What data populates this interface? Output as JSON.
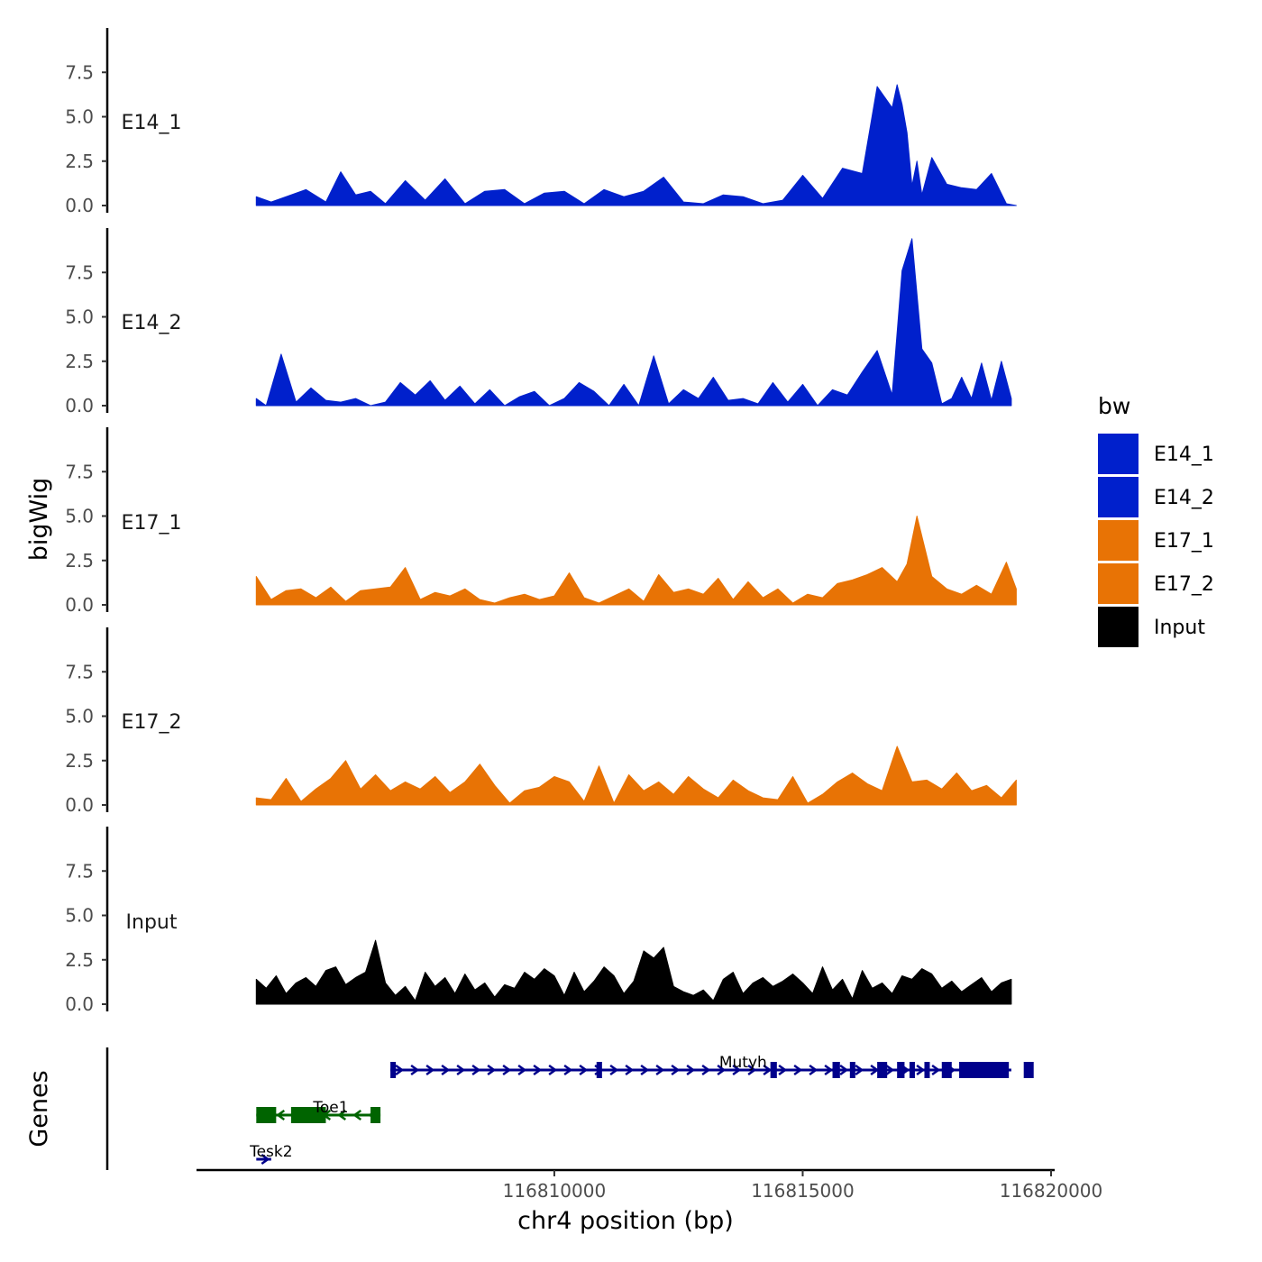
{
  "chart_data": {
    "type": "area",
    "x_axis": {
      "title": "chr4 position (bp)",
      "range": [
        116801000,
        116820000
      ],
      "ticks": [
        116810000,
        116815000,
        116820000
      ],
      "tick_labels": [
        "116810000",
        "116815000",
        "116820000"
      ]
    },
    "y_axis": {
      "title": "bigWig",
      "range": [
        0,
        10
      ],
      "ticks": [
        0,
        2.5,
        5,
        7.5
      ],
      "tick_labels": [
        "0.0",
        "2.5",
        "5.0",
        "7.5"
      ]
    },
    "genes_title": "Genes",
    "legend": {
      "title": "bw",
      "entries": [
        {
          "name": "E14_1",
          "color": "#0020cc"
        },
        {
          "name": "E14_2",
          "color": "#0020cc"
        },
        {
          "name": "E17_1",
          "color": "#e87305"
        },
        {
          "name": "E17_2",
          "color": "#e87305"
        },
        {
          "name": "Input",
          "color": "#000000"
        }
      ]
    },
    "series": [
      {
        "name": "E14_1",
        "label": "E14_1",
        "color": "#0020cc",
        "x": [
          116804000,
          116804300,
          116804600,
          116805000,
          116805400,
          116805700,
          116806000,
          116806300,
          116806600,
          116807000,
          116807400,
          116807800,
          116808200,
          116808600,
          116809000,
          116809400,
          116809800,
          116810200,
          116810600,
          116811000,
          116811400,
          116811800,
          116812200,
          116812600,
          116813000,
          116813400,
          116813800,
          116814200,
          116814600,
          116815000,
          116815400,
          116815800,
          116816200,
          116816500,
          116816800,
          116816900,
          116817000,
          116817100,
          116817200,
          116817300,
          116817400,
          116817600,
          116817900,
          116818200,
          116818500,
          116818800,
          116819100,
          116819300
        ],
        "y": [
          0.5,
          0.2,
          0.5,
          0.9,
          0.2,
          1.9,
          0.6,
          0.8,
          0.1,
          1.4,
          0.3,
          1.5,
          0.1,
          0.8,
          0.9,
          0.1,
          0.7,
          0.8,
          0.1,
          0.9,
          0.5,
          0.8,
          1.6,
          0.2,
          0.1,
          0.6,
          0.5,
          0.1,
          0.3,
          1.7,
          0.4,
          2.1,
          1.8,
          6.7,
          5.5,
          6.8,
          5.7,
          4.1,
          1.1,
          2.5,
          0.6,
          2.7,
          1.2,
          1.0,
          0.9,
          1.8,
          0.1,
          0.0
        ]
      },
      {
        "name": "E14_2",
        "label": "E14_2",
        "color": "#0020cc",
        "x": [
          116804000,
          116804200,
          116804500,
          116804800,
          116805100,
          116805400,
          116805700,
          116806000,
          116806300,
          116806600,
          116806900,
          116807200,
          116807500,
          116807800,
          116808100,
          116808400,
          116808700,
          116809000,
          116809300,
          116809600,
          116809900,
          116810200,
          116810500,
          116810800,
          116811100,
          116811400,
          116811700,
          116812000,
          116812300,
          116812600,
          116812900,
          116813200,
          116813500,
          116813800,
          116814100,
          116814400,
          116814700,
          116815000,
          116815300,
          116815600,
          116815900,
          116816200,
          116816500,
          116816800,
          116817000,
          116817200,
          116817400,
          116817600,
          116817800,
          116818000,
          116818200,
          116818400,
          116818600,
          116818800,
          116819000,
          116819200
        ],
        "y": [
          0.4,
          0.0,
          2.9,
          0.2,
          1.0,
          0.3,
          0.2,
          0.4,
          0.0,
          0.2,
          1.3,
          0.6,
          1.4,
          0.3,
          1.1,
          0.1,
          0.9,
          0.0,
          0.5,
          0.8,
          0.0,
          0.4,
          1.3,
          0.8,
          0.0,
          1.2,
          0.0,
          2.8,
          0.1,
          0.9,
          0.4,
          1.6,
          0.3,
          0.4,
          0.1,
          1.3,
          0.2,
          1.2,
          0.0,
          0.9,
          0.6,
          1.9,
          3.1,
          0.6,
          7.6,
          9.4,
          3.2,
          2.4,
          0.1,
          0.4,
          1.6,
          0.4,
          2.4,
          0.3,
          2.5,
          0.4
        ]
      },
      {
        "name": "E17_1",
        "label": "E17_1",
        "color": "#e87305",
        "x": [
          116804000,
          116804300,
          116804600,
          116804900,
          116805200,
          116805500,
          116805800,
          116806100,
          116806400,
          116806700,
          116807000,
          116807300,
          116807600,
          116807900,
          116808200,
          116808500,
          116808800,
          116809100,
          116809400,
          116809700,
          116810000,
          116810300,
          116810600,
          116810900,
          116811200,
          116811500,
          116811800,
          116812100,
          116812400,
          116812700,
          116813000,
          116813300,
          116813600,
          116813900,
          116814200,
          116814500,
          116814800,
          116815100,
          116815400,
          116815700,
          116816000,
          116816300,
          116816600,
          116816900,
          116817100,
          116817300,
          116817600,
          116817900,
          116818200,
          116818500,
          116818800,
          116819100,
          116819300
        ],
        "y": [
          1.6,
          0.3,
          0.8,
          0.9,
          0.4,
          1.0,
          0.2,
          0.8,
          0.9,
          1.0,
          2.1,
          0.3,
          0.7,
          0.5,
          0.9,
          0.3,
          0.1,
          0.4,
          0.6,
          0.3,
          0.5,
          1.8,
          0.4,
          0.1,
          0.5,
          0.9,
          0.2,
          1.7,
          0.7,
          0.9,
          0.6,
          1.5,
          0.3,
          1.3,
          0.4,
          0.9,
          0.1,
          0.6,
          0.4,
          1.2,
          1.4,
          1.7,
          2.1,
          1.3,
          2.3,
          5.0,
          1.6,
          0.9,
          0.6,
          1.1,
          0.6,
          2.4,
          0.9
        ]
      },
      {
        "name": "E17_2",
        "label": "E17_2",
        "color": "#e87305",
        "x": [
          116804000,
          116804300,
          116804600,
          116804900,
          116805200,
          116805500,
          116805800,
          116806100,
          116806400,
          116806700,
          116807000,
          116807300,
          116807600,
          116807900,
          116808200,
          116808500,
          116808800,
          116809100,
          116809400,
          116809700,
          116810000,
          116810300,
          116810600,
          116810900,
          116811200,
          116811500,
          116811800,
          116812100,
          116812400,
          116812700,
          116813000,
          116813300,
          116813600,
          116813900,
          116814200,
          116814500,
          116814800,
          116815100,
          116815400,
          116815700,
          116816000,
          116816300,
          116816600,
          116816900,
          116817200,
          116817500,
          116817800,
          116818100,
          116818400,
          116818700,
          116819000,
          116819300
        ],
        "y": [
          0.4,
          0.3,
          1.5,
          0.2,
          0.9,
          1.5,
          2.5,
          0.9,
          1.7,
          0.8,
          1.3,
          0.9,
          1.6,
          0.7,
          1.3,
          2.3,
          1.1,
          0.1,
          0.8,
          1.0,
          1.6,
          1.3,
          0.2,
          2.2,
          0.1,
          1.7,
          0.8,
          1.3,
          0.6,
          1.6,
          0.9,
          0.4,
          1.4,
          0.8,
          0.4,
          0.3,
          1.6,
          0.1,
          0.6,
          1.3,
          1.8,
          1.2,
          0.8,
          3.3,
          1.3,
          1.4,
          0.9,
          1.8,
          0.8,
          1.1,
          0.4,
          1.4
        ]
      },
      {
        "name": "Input",
        "label": "Input",
        "color": "#000000",
        "x": [
          116804000,
          116804200,
          116804400,
          116804600,
          116804800,
          116805000,
          116805200,
          116805400,
          116805600,
          116805800,
          116806000,
          116806200,
          116806400,
          116806600,
          116806800,
          116807000,
          116807200,
          116807400,
          116807600,
          116807800,
          116808000,
          116808200,
          116808400,
          116808600,
          116808800,
          116809000,
          116809200,
          116809400,
          116809600,
          116809800,
          116810000,
          116810200,
          116810400,
          116810600,
          116810800,
          116811000,
          116811200,
          116811400,
          116811600,
          116811800,
          116812000,
          116812200,
          116812400,
          116812600,
          116812800,
          116813000,
          116813200,
          116813400,
          116813600,
          116813800,
          116814000,
          116814200,
          116814400,
          116814600,
          116814800,
          116815000,
          116815200,
          116815400,
          116815600,
          116815800,
          116816000,
          116816200,
          116816400,
          116816600,
          116816800,
          116817000,
          116817200,
          116817400,
          116817600,
          116817800,
          116818000,
          116818200,
          116818400,
          116818600,
          116818800,
          116819000,
          116819200
        ],
        "y": [
          1.4,
          0.9,
          1.6,
          0.6,
          1.2,
          1.5,
          1.0,
          1.9,
          2.1,
          1.1,
          1.5,
          1.8,
          3.6,
          1.2,
          0.5,
          1.0,
          0.2,
          1.8,
          1.0,
          1.5,
          0.6,
          1.7,
          0.8,
          1.2,
          0.4,
          1.1,
          0.9,
          1.8,
          1.4,
          2.0,
          1.6,
          0.5,
          1.8,
          0.7,
          1.3,
          2.1,
          1.6,
          0.6,
          1.3,
          3.0,
          2.6,
          3.2,
          1.0,
          0.7,
          0.5,
          0.8,
          0.2,
          1.4,
          1.8,
          0.6,
          1.2,
          1.5,
          1.0,
          1.3,
          1.7,
          1.2,
          0.6,
          2.1,
          0.8,
          1.4,
          0.3,
          1.9,
          0.9,
          1.2,
          0.6,
          1.6,
          1.4,
          2.0,
          1.7,
          0.9,
          1.3,
          0.7,
          1.1,
          1.5,
          0.7,
          1.2,
          1.4
        ]
      }
    ],
    "genes": [
      {
        "name": "Mutyh",
        "strand": "+",
        "color": "#00008b",
        "row": 1,
        "label_x": 116813800,
        "start": 116806700,
        "end": 116819200,
        "exons": [
          [
            116806700,
            116806760
          ],
          [
            116810850,
            116810960
          ],
          [
            116814350,
            116814480
          ],
          [
            116815600,
            116815750
          ],
          [
            116815950,
            116816050
          ],
          [
            116816500,
            116816700
          ],
          [
            116816900,
            116817050
          ],
          [
            116817150,
            116817250
          ],
          [
            116817450,
            116817550
          ],
          [
            116817800,
            116818000
          ],
          [
            116818150,
            116819150
          ],
          [
            116819450,
            116819650
          ]
        ]
      },
      {
        "name": "Toe1",
        "strand": "-",
        "color": "#006400",
        "row": 2,
        "label_x": 116805500,
        "start": 116804000,
        "end": 116806500,
        "exons": [
          [
            116804000,
            116804400
          ],
          [
            116804700,
            116805400
          ],
          [
            116806300,
            116806500
          ]
        ]
      },
      {
        "name": "Tesk2",
        "strand": "+",
        "color": "#00008b",
        "row": 3,
        "label_x": 116804300,
        "start": 116804000,
        "end": 116804300,
        "exons": []
      }
    ]
  }
}
